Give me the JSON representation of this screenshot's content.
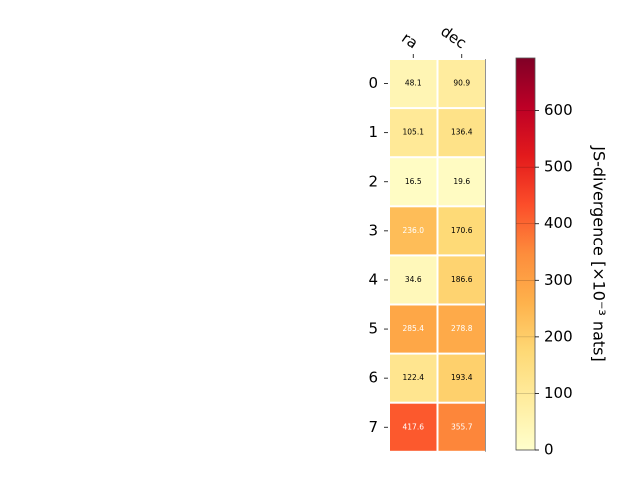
{
  "chart_data": {
    "type": "heatmap",
    "columns": [
      "ra",
      "dec"
    ],
    "rows": [
      "0",
      "1",
      "2",
      "3",
      "4",
      "5",
      "6",
      "7"
    ],
    "values": [
      [
        48.1,
        90.9
      ],
      [
        105.1,
        136.4
      ],
      [
        16.5,
        19.6
      ],
      [
        236.0,
        170.6
      ],
      [
        34.6,
        186.6
      ],
      [
        285.4,
        278.8
      ],
      [
        122.4,
        193.4
      ],
      [
        417.6,
        355.7
      ]
    ],
    "cell_labels": [
      [
        "48.1",
        "90.9"
      ],
      [
        "105.1",
        "136.4"
      ],
      [
        "16.5",
        "19.6"
      ],
      [
        "236.0",
        "170.6"
      ],
      [
        "34.6",
        "186.6"
      ],
      [
        "285.4",
        "278.8"
      ],
      [
        "122.4",
        "193.4"
      ],
      [
        "417.6",
        "355.7"
      ]
    ],
    "colorbar": {
      "label": "JS-divergence [×10⁻³ nats]",
      "range": [
        0,
        693
      ],
      "ticks": [
        0,
        100,
        200,
        300,
        400,
        500,
        600
      ],
      "colormap": "YlOrRd"
    }
  }
}
